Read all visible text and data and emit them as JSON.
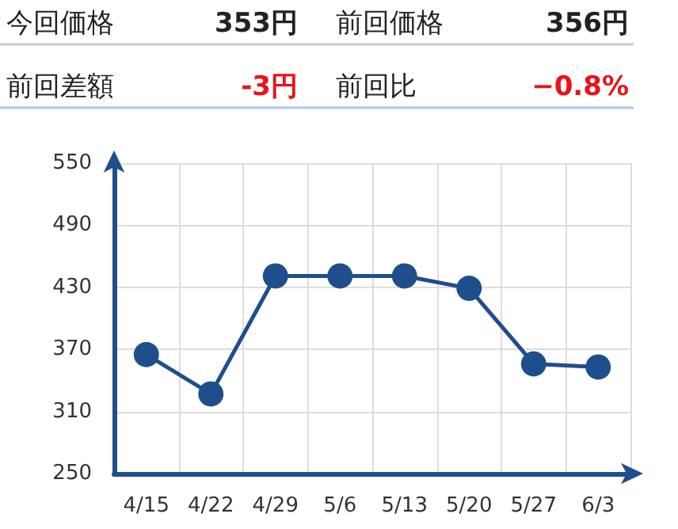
{
  "chart_data": {
    "type": "line",
    "annotations": [
      "今回価格",
      "353円",
      "前回価格",
      "356円",
      "前回差額",
      "-3円",
      "前回比",
      "−0.8%"
    ],
    "categories": [
      "4/15",
      "4/22",
      "4/29",
      "5/6",
      "5/13",
      "5/20",
      "5/27",
      "6/3"
    ],
    "series": [
      {
        "color": "#1f4e8c",
        "values": [
          365,
          327,
          441,
          441,
          441,
          429,
          356,
          353
        ]
      }
    ],
    "ylim": [
      250,
      550
    ],
    "yticks": [
      250,
      310,
      370,
      430,
      490,
      550
    ],
    "grid": true,
    "marker": "circle",
    "line_style": "solid"
  }
}
